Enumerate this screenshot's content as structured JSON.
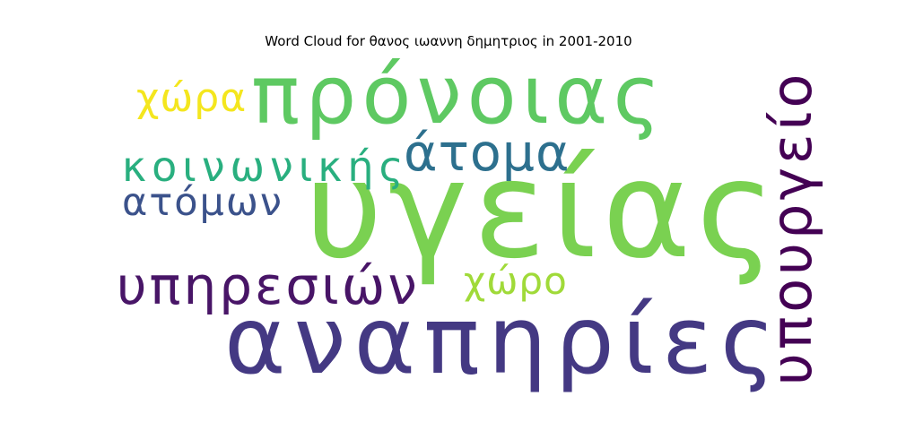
{
  "chart_data": {
    "type": "wordcloud",
    "title": "Word Cloud for θανος ιωαννη δημητριος in 2001-2010",
    "words": [
      {
        "text": "υγείας",
        "weight": 100,
        "color": "#7ad151",
        "orientation": "horizontal"
      },
      {
        "text": "αναπηρίες",
        "weight": 80,
        "color": "#443983",
        "orientation": "horizontal"
      },
      {
        "text": "πρόνοιας",
        "weight": 72,
        "color": "#5ec962",
        "orientation": "horizontal"
      },
      {
        "text": "υπουργείο",
        "weight": 52,
        "color": "#440154",
        "orientation": "vertical"
      },
      {
        "text": "υπηρεσιών",
        "weight": 46,
        "color": "#481567",
        "orientation": "horizontal"
      },
      {
        "text": "άτομα",
        "weight": 45,
        "color": "#2d708e",
        "orientation": "horizontal"
      },
      {
        "text": "κοινωνικής",
        "weight": 38,
        "color": "#29af7f",
        "orientation": "horizontal"
      },
      {
        "text": "ατόμων",
        "weight": 36,
        "color": "#3b528b",
        "orientation": "horizontal"
      },
      {
        "text": "χώρα",
        "weight": 35,
        "color": "#f4e61e",
        "orientation": "horizontal"
      },
      {
        "text": "χώρο",
        "weight": 32,
        "color": "#a0da39",
        "orientation": "horizontal"
      }
    ]
  }
}
